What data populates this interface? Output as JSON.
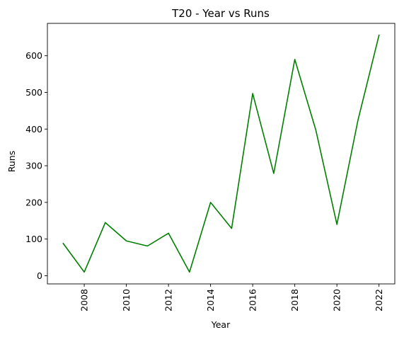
{
  "chart_data": {
    "type": "line",
    "title": "T20 - Year vs Runs",
    "xlabel": "Year",
    "ylabel": "Runs",
    "x": [
      2007,
      2008,
      2009,
      2010,
      2011,
      2012,
      2013,
      2014,
      2015,
      2016,
      2017,
      2018,
      2019,
      2020,
      2021,
      2022
    ],
    "series": [
      {
        "values": [
          88,
          10,
          145,
          95,
          81,
          116,
          10,
          200,
          129,
          497,
          279,
          590,
          397,
          140,
          424,
          656
        ],
        "color": "#008000"
      }
    ],
    "xticks": [
      "2008",
      "2010",
      "2012",
      "2014",
      "2016",
      "2018",
      "2020",
      "2022"
    ],
    "yticks": [
      "0",
      "100",
      "200",
      "300",
      "400",
      "500",
      "600"
    ],
    "xlim": [
      2006.25,
      2022.75
    ],
    "ylim": [
      -22.3,
      688.3
    ],
    "grid": false,
    "legend": "none"
  }
}
